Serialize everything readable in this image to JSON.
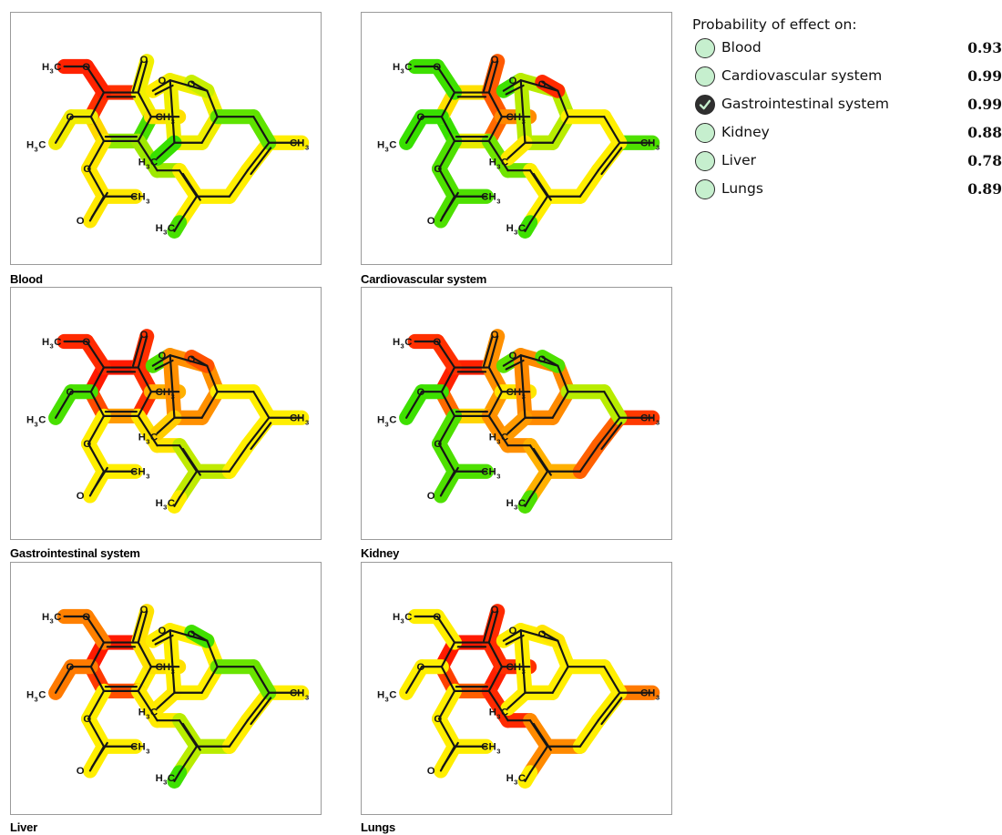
{
  "legend": {
    "title": "Probability of effect on:",
    "items": [
      {
        "label": "Blood",
        "value": "0.93",
        "checked": false
      },
      {
        "label": "Cardiovascular system",
        "value": "0.99",
        "checked": false
      },
      {
        "label": "Gastrointestinal system",
        "value": "0.99",
        "checked": true
      },
      {
        "label": "Kidney",
        "value": "0.88",
        "checked": false
      },
      {
        "label": "Liver",
        "value": "0.78",
        "checked": false
      },
      {
        "label": "Lungs",
        "value": "0.89",
        "checked": false
      }
    ]
  },
  "colors": {
    "high": "#ff1a00",
    "medium": "#ffff00",
    "low": "#2ee600",
    "radio_fill": "#c6efce"
  },
  "atoms": {
    "methyl_left_top": "H3C",
    "methyl_left_bottom": "H3C",
    "methyl_acetyl": "CH3",
    "methyl_ring": "CH3",
    "methyl_lactone": "H3C",
    "methyl_chain_right": "CH3",
    "methyl_chain_bottom": "H3C",
    "oxygen": "O"
  },
  "panels": [
    {
      "caption": "Blood",
      "heat": {
        "ring": "#ff3000",
        "ring_left": "#ffd800",
        "ring_right": "#f2f000",
        "ring_bottom_left": "#8fe800",
        "ring_bottom_right": "#48e000",
        "ome_top": "#ff2200",
        "ome_left": "#f2ec00",
        "acetate": "#ffe800",
        "ring_methyl": "#ffe000",
        "lactone": "#f0ee00",
        "lactone_o": "#c8ee00",
        "lactone_co": "#ffee00",
        "lactone_me": "#38e000",
        "chain_a": "#9ee800",
        "chain_b": "#ffee00",
        "chain_c": "#ffee00",
        "chain_me": "#ffee00",
        "tail": "#5fe300",
        "tail_me": "#48e000"
      }
    },
    {
      "caption": "Cardiovascular system",
      "heat": {
        "ring": "#ffe000",
        "ring_left": "#38e000",
        "ring_right": "#ff5a00",
        "ring_bottom_left": "#e8ea00",
        "ring_bottom_right": "#ff6a00",
        "ome_top": "#3ee000",
        "ome_left": "#38e000",
        "acetate": "#4ee000",
        "ring_methyl": "#ff8a00",
        "lactone": "#b8ec00",
        "lactone_o": "#ff2a00",
        "lactone_co": "#3ee000",
        "lactone_me": "#ffea00",
        "chain_a": "#6fe400",
        "chain_b": "#ffee00",
        "chain_c": "#ffee00",
        "chain_me": "#4ee000",
        "tail": "#ffee00",
        "tail_me": "#3ee000"
      }
    },
    {
      "caption": "Gastrointestinal system",
      "heat": {
        "ring": "#ff1a00",
        "ring_left": "#ff4a00",
        "ring_right": "#ff3000",
        "ring_bottom_left": "#ff9a00",
        "ring_bottom_right": "#ff3000",
        "ome_top": "#ff2a00",
        "ome_left": "#48e000",
        "acetate": "#ffee00",
        "ring_methyl": "#ffb000",
        "lactone": "#ff9000",
        "lactone_o": "#ff5000",
        "lactone_co": "#4ee000",
        "lactone_me": "#ffcc00",
        "chain_a": "#ffe400",
        "chain_b": "#bfea00",
        "chain_c": "#ffee00",
        "chain_me": "#ffee00",
        "tail": "#ffee00",
        "tail_me": "#ffee00"
      }
    },
    {
      "caption": "Kidney",
      "heat": {
        "ring": "#ff2200",
        "ring_left": "#ff6a00",
        "ring_right": "#ff9000",
        "ring_bottom_left": "#ffd400",
        "ring_bottom_right": "#ff9a00",
        "ome_top": "#ff3000",
        "ome_left": "#3ee000",
        "acetate": "#4ee000",
        "ring_methyl": "#ffe600",
        "lactone": "#ff8a00",
        "lactone_o": "#4ee000",
        "lactone_co": "#5ce200",
        "lactone_me": "#ff9a00",
        "chain_a": "#ff9000",
        "chain_b": "#ffb000",
        "chain_c": "#ff6000",
        "chain_me": "#ff3a00",
        "tail": "#b8ec00",
        "tail_me": "#4ee000"
      }
    },
    {
      "caption": "Liver",
      "heat": {
        "ring": "#ff1a00",
        "ring_left": "#ff3a00",
        "ring_right": "#ffe200",
        "ring_bottom_left": "#ff5000",
        "ring_bottom_right": "#ffee00",
        "ome_top": "#ff8000",
        "ome_left": "#ff7a00",
        "acetate": "#ffee00",
        "ring_methyl": "#ffe000",
        "lactone": "#ffee00",
        "lactone_o": "#40e000",
        "lactone_co": "#ffee00",
        "lactone_me": "#ffea00",
        "chain_a": "#ffea00",
        "chain_b": "#b8ec00",
        "chain_c": "#ffee00",
        "chain_me": "#ffee00",
        "tail": "#6ae400",
        "tail_me": "#3ee000"
      }
    },
    {
      "caption": "Lungs",
      "heat": {
        "ring": "#ff1a00",
        "ring_left": "#ff4000",
        "ring_right": "#ff2a00",
        "ring_bottom_left": "#ff6000",
        "ring_bottom_right": "#ff2000",
        "ome_top": "#ffee00",
        "ome_left": "#ffee00",
        "acetate": "#ffee00",
        "ring_methyl": "#ff3000",
        "lactone": "#ffee00",
        "lactone_o": "#ffe400",
        "lactone_co": "#ffee00",
        "lactone_me": "#ffee00",
        "chain_a": "#ff2a00",
        "chain_b": "#ff8a00",
        "chain_c": "#ffee00",
        "chain_me": "#ff7a00",
        "tail": "#ffee00",
        "tail_me": "#ffee00"
      }
    }
  ]
}
